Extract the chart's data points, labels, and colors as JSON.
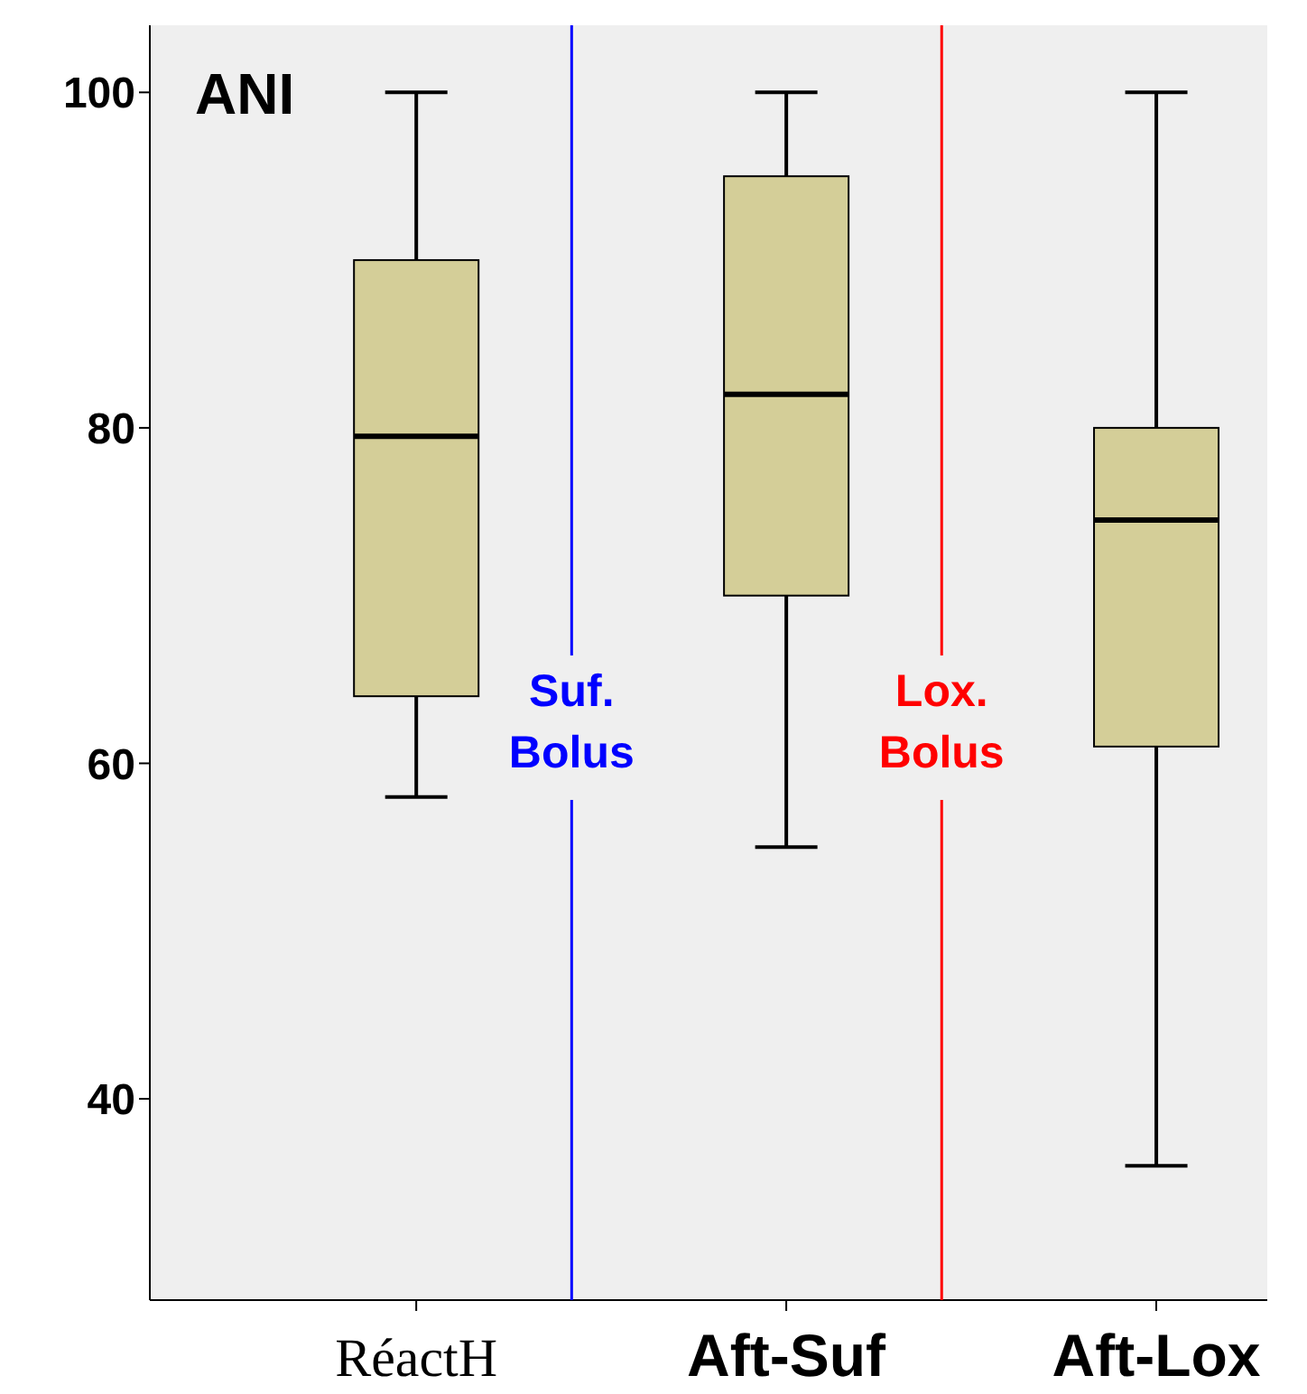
{
  "chart_data": {
    "type": "box",
    "title": "ANI",
    "categories": [
      "RéactH",
      "Aft-Suf",
      "Aft-Lox"
    ],
    "color": "#d4ce98",
    "boxes": [
      {
        "low": 58,
        "q1": 64,
        "median": 79.5,
        "q3": 90,
        "high": 100
      },
      {
        "low": 55,
        "q1": 70,
        "median": 82,
        "q3": 95,
        "high": 100
      },
      {
        "low": 36,
        "q1": 61,
        "median": 74.5,
        "q3": 80,
        "high": 100
      }
    ],
    "ylim": [
      28,
      104
    ],
    "yticks": [
      40,
      60,
      80,
      100
    ],
    "grid": false,
    "annotations": [
      "Suf.\nBolus",
      "Lox.\nBolus"
    ]
  }
}
